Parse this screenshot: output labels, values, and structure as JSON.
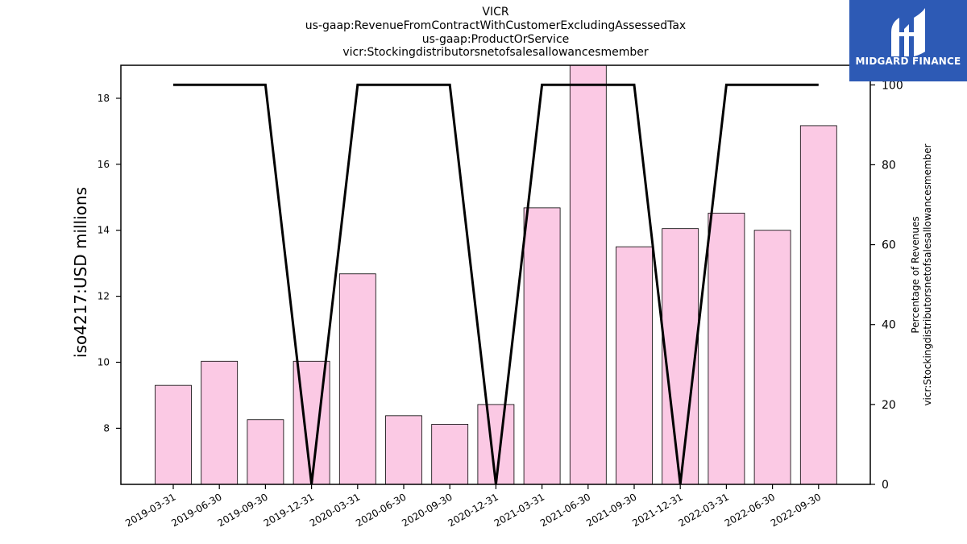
{
  "chart_data": {
    "type": "bar",
    "title_lines": [
      "VICR",
      "us-gaap:RevenueFromContractWithCustomerExcludingAssessedTax",
      "us-gaap:ProductOrService",
      "vicr:Stockingdistributorsnetofsalesallowancesmember"
    ],
    "categories": [
      "2019-03-31",
      "2019-06-30",
      "2019-09-30",
      "2019-12-31",
      "2020-03-31",
      "2020-06-30",
      "2020-09-30",
      "2020-12-31",
      "2021-03-31",
      "2021-06-30",
      "2021-09-30",
      "2021-12-31",
      "2022-03-31",
      "2022-06-30",
      "2022-09-30"
    ],
    "series": [
      {
        "axis": "left",
        "kind": "bar",
        "color": "#fbc9e4",
        "values": [
          9.3,
          10.03,
          8.26,
          10.03,
          12.68,
          8.38,
          8.12,
          8.72,
          14.68,
          19.0,
          13.5,
          14.05,
          14.52,
          14.0,
          17.17
        ]
      },
      {
        "axis": "right",
        "kind": "line",
        "color": "#000000",
        "values": [
          100,
          100,
          100,
          0,
          100,
          100,
          100,
          0,
          100,
          100,
          100,
          0,
          100,
          100,
          100
        ]
      }
    ],
    "ylabel": "iso4217:USD  millions",
    "ylim": [
      6.3,
      19.0
    ],
    "yticks": [
      8,
      10,
      12,
      14,
      16,
      18
    ],
    "y2label_lines": [
      "Percentage of Revenues",
      "vicr:Stockingdistributorsnetofsalesallowancesmember"
    ],
    "y2lim": [
      0,
      104.9
    ],
    "y2ticks": [
      0,
      20,
      40,
      60,
      80,
      100
    ],
    "grid": false
  },
  "logo": {
    "text": "MIDGARD FINANCE",
    "colors": {
      "background": "#2d5ab5",
      "foreground": "#ffffff"
    }
  }
}
